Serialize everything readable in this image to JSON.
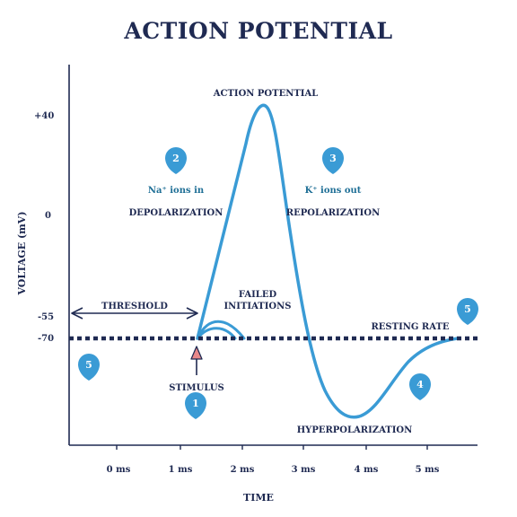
{
  "title": "ACTION POTENTIAL",
  "axes": {
    "y_title": "VOLTAGE (mV)",
    "x_title": "TIME",
    "y_ticks": [
      "+40",
      "0",
      "-55",
      "-70"
    ],
    "x_ticks": [
      "0 ms",
      "1 ms",
      "2 ms",
      "3 ms",
      "4 ms",
      "5 ms"
    ]
  },
  "labels": {
    "action_potential": "ACTION POTENTIAL",
    "na_ions": "Na⁺ ions in",
    "depolarization": "DEPOLARIZATION",
    "k_ions": "K⁺ ions out",
    "repolarization": "REPOLARIZATION",
    "threshold": "THRESHOLD",
    "failed_line1": "FAILED",
    "failed_line2": "INITIATIONS",
    "resting_rate": "RESTING RATE",
    "stimulus": "STIMULUS",
    "hyperpolarization": "HYPERPOLARIZATION"
  },
  "markers": {
    "m1": "1",
    "m2": "2",
    "m3": "3",
    "m4": "4",
    "m5_left": "5",
    "m5_right": "5"
  },
  "colors": {
    "curve": "#3a9bd5",
    "marker": "#3a9bd5",
    "text": "#1f2a52",
    "stimulus_arrow": "#e8888a"
  }
}
